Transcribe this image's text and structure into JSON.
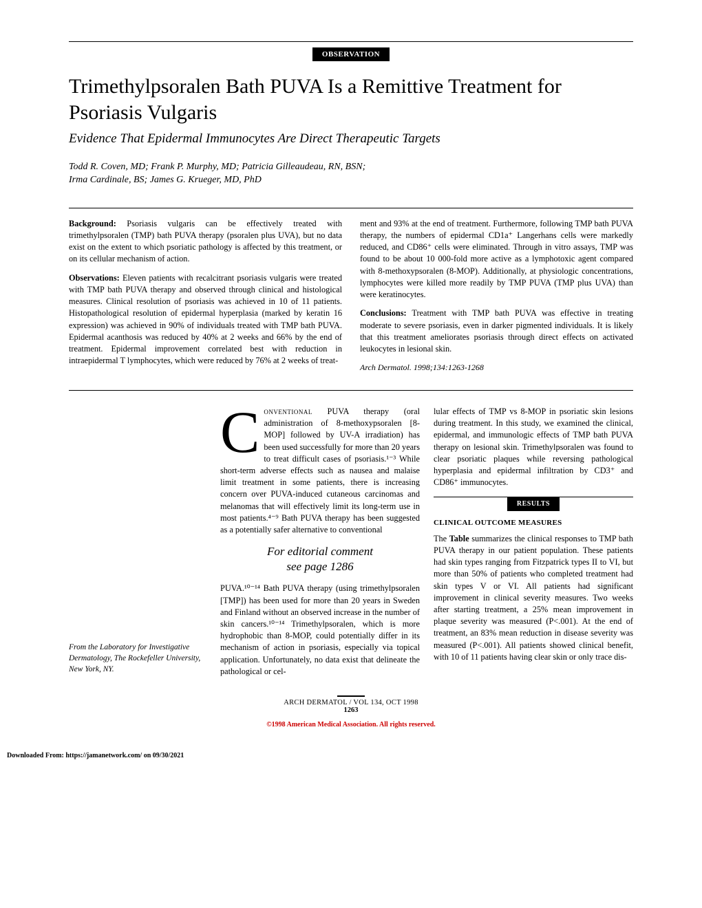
{
  "section_label": "OBSERVATION",
  "title": "Trimethylpsoralen Bath PUVA Is a Remittive Treatment for Psoriasis Vulgaris",
  "subtitle": "Evidence That Epidermal Immunocytes Are Direct Therapeutic Targets",
  "authors_line1": "Todd R. Coven, MD; Frank P. Murphy, MD; Patricia Gilleaudeau, RN, BSN;",
  "authors_line2": "Irma Cardinale, BS; James G. Krueger, MD, PhD",
  "abstract": {
    "background_label": "Background:",
    "background_text": " Psoriasis vulgaris can be effectively treated with trimethylpsoralen (TMP) bath PUVA therapy (psoralen plus UVA), but no data exist on the extent to which psoriatic pathology is affected by this treatment, or on its cellular mechanism of action.",
    "observations_label": "Observations:",
    "observations_text": " Eleven patients with recalcitrant psoriasis vulgaris were treated with TMP bath PUVA therapy and observed through clinical and histological measures. Clinical resolution of psoriasis was achieved in 10 of 11 patients. Histopathological resolution of epidermal hyperplasia (marked by keratin 16 expression) was achieved in 90% of individuals treated with TMP bath PUVA. Epidermal acanthosis was reduced by 40% at 2 weeks and 66% by the end of treatment. Epidermal improvement correlated best with reduction in intraepidermal T lymphocytes, which were reduced by 76% at 2 weeks of treat-",
    "col2_continuation": "ment and 93% at the end of treatment. Furthermore, following TMP bath PUVA therapy, the numbers of epidermal CD1a⁺ Langerhans cells were markedly reduced, and CD86⁺ cells were eliminated. Through in vitro assays, TMP was found to be about 10 000-fold more active as a lymphotoxic agent compared with 8-methoxypsoralen (8-MOP). Additionally, at physiologic concentrations, lymphocytes were killed more readily by TMP PUVA (TMP plus UVA) than were keratinocytes.",
    "conclusions_label": "Conclusions:",
    "conclusions_text": " Treatment with TMP bath PUVA was effective in treating moderate to severe psoriasis, even in darker pigmented individuals. It is likely that this treatment ameliorates psoriasis through direct effects on activated leukocytes in lesional skin.",
    "citation": "Arch Dermatol. 1998;134:1263-1268"
  },
  "body": {
    "affiliation": "From the Laboratory for Investigative Dermatology, The Rockefeller University, New York, NY.",
    "dropcap": "C",
    "center_para1_lead": "onventional",
    "center_para1": " PUVA therapy (oral administration of 8-methoxypsoralen [8-MOP] followed by UV-A irradiation) has been used successfully for more than 20 years to treat difficult cases of psoriasis.¹⁻³ While short-term adverse effects such as nausea and malaise limit treatment in some patients, there is increasing concern over PUVA-induced cutaneous carcinomas and melanomas that will effectively limit its long-term use in most patients.⁴⁻⁹ Bath PUVA therapy has been suggested as a potentially safer alternative to conventional",
    "editorial_line1": "For editorial comment",
    "editorial_line2": "see page 1286",
    "center_para2": "PUVA.¹⁰⁻¹⁴ Bath PUVA therapy (using trimethylpsoralen [TMP]) has been used for more than 20 years in Sweden and Finland without an observed increase in the number of skin cancers.¹⁰⁻¹⁴ Trimethylpsoralen, which is more hydrophobic than 8-MOP, could potentially differ in its mechanism of action in psoriasis, especially via topical application. Unfortunately, no data exist that delineate the pathological or cel-",
    "right_para1": "lular effects of TMP vs 8-MOP in psoriatic skin lesions during treatment. In this study, we examined the clinical, epidermal, and immunologic effects of TMP bath PUVA therapy on lesional skin. Trimethylpsoralen was found to clear psoriatic plaques while reversing pathological hyperplasia and epidermal infiltration by CD3⁺ and CD86⁺ immunocytes.",
    "results_label": "RESULTS",
    "clinical_heading": "CLINICAL OUTCOME MEASURES",
    "right_para2a": "The ",
    "table_word": "Table",
    "right_para2b": " summarizes the clinical responses to TMP bath PUVA therapy in our patient population. These patients had skin types ranging from Fitzpatrick types II to VI, but more than 50% of patients who completed treatment had skin types V or VI. All patients had significant improvement in clinical severity measures. Two weeks after starting treatment, a 25% mean improvement in plaque severity was measured (P<.001). At the end of treatment, an 83% mean reduction in disease severity was measured (P<.001). All patients showed clinical benefit, with 10 of 11 patients having clear skin or only trace dis-"
  },
  "footer": {
    "line1": "ARCH DERMATOL / VOL 134, OCT 1998",
    "page_number": "1263",
    "copyright": "©1998 American Medical Association. All rights reserved.",
    "download": "Downloaded From: https://jamanetwork.com/ on 09/30/2021"
  }
}
